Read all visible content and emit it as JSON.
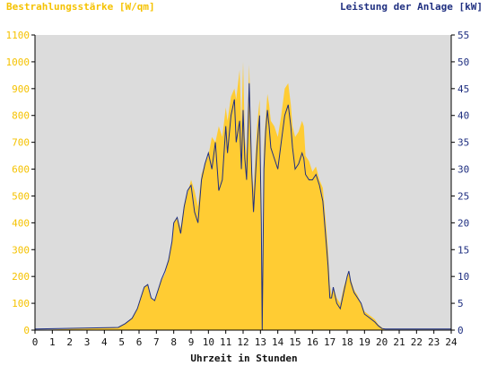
{
  "chart_data": {
    "type": "area",
    "left_title": "Bestrahlungsstärke [W/qm]",
    "right_title": "Leistung der Anlage [kW]",
    "xlabel": "Uhrzeit in Stunden",
    "x_ticks": [
      "0",
      "1",
      "2",
      "3",
      "4",
      "5",
      "6",
      "7",
      "8",
      "9",
      "10",
      "11",
      "12",
      "13",
      "14",
      "15",
      "16",
      "17",
      "18",
      "19",
      "20",
      "21",
      "22",
      "23",
      "24"
    ],
    "xlim": [
      0,
      24
    ],
    "y_left_ticks": [
      "0",
      "100",
      "200",
      "300",
      "400",
      "500",
      "600",
      "700",
      "800",
      "900",
      "1000",
      "1100"
    ],
    "ylim_left": [
      0,
      1100
    ],
    "y_right_ticks": [
      "0",
      "5",
      "10",
      "15",
      "20",
      "25",
      "30",
      "35",
      "40",
      "45",
      "50",
      "55"
    ],
    "ylim_right": [
      0,
      55
    ],
    "grid": false,
    "colors": {
      "plot_background": "#dcdcdc",
      "irradiance_fill": "#ffcc33",
      "power_line": "#1f2f80",
      "left_axis_text": "#f5c200",
      "right_axis_text": "#1f2f80"
    },
    "series": [
      {
        "name": "Bestrahlungsstärke [W/qm]",
        "axis": "left",
        "x": [
          0,
          4.8,
          5.2,
          5.6,
          5.9,
          6.1,
          6.3,
          6.5,
          6.7,
          6.9,
          7.1,
          7.3,
          7.5,
          7.7,
          7.9,
          8.0,
          8.2,
          8.4,
          8.6,
          8.8,
          9.0,
          9.2,
          9.4,
          9.6,
          9.8,
          10.0,
          10.2,
          10.4,
          10.6,
          10.8,
          11.0,
          11.1,
          11.3,
          11.5,
          11.6,
          11.8,
          11.9,
          12.0,
          12.1,
          12.2,
          12.35,
          12.5,
          12.6,
          12.8,
          12.95,
          13.05,
          13.1,
          13.2,
          13.3,
          13.4,
          13.5,
          13.6,
          13.8,
          14.0,
          14.2,
          14.4,
          14.6,
          14.75,
          14.85,
          15.0,
          15.2,
          15.4,
          15.5,
          15.6,
          15.8,
          16.0,
          16.2,
          16.4,
          16.6,
          16.8,
          16.9,
          17.0,
          17.1,
          17.2,
          17.4,
          17.6,
          17.8,
          18.0,
          18.1,
          18.2,
          18.4,
          18.6,
          18.8,
          19.0,
          19.2,
          19.4,
          19.6,
          19.8,
          20.0,
          20.2,
          20.4,
          20.6,
          24
        ],
        "values": [
          0,
          10,
          25,
          45,
          80,
          120,
          160,
          170,
          120,
          110,
          150,
          185,
          210,
          260,
          330,
          400,
          420,
          380,
          470,
          510,
          560,
          520,
          460,
          580,
          620,
          650,
          720,
          700,
          760,
          720,
          830,
          780,
          870,
          900,
          860,
          970,
          760,
          1000,
          720,
          650,
          990,
          600,
          520,
          760,
          860,
          450,
          0,
          680,
          790,
          880,
          840,
          780,
          760,
          720,
          800,
          900,
          920,
          840,
          760,
          720,
          740,
          780,
          760,
          650,
          630,
          590,
          610,
          560,
          530,
          380,
          300,
          170,
          130,
          160,
          120,
          100,
          160,
          200,
          220,
          190,
          150,
          130,
          100,
          70,
          60,
          50,
          40,
          20,
          10,
          0,
          0,
          0,
          0
        ]
      },
      {
        "name": "Leistung der Anlage [kW]",
        "axis": "right",
        "x": [
          0,
          4.8,
          5.2,
          5.6,
          5.9,
          6.1,
          6.3,
          6.5,
          6.7,
          6.9,
          7.1,
          7.3,
          7.5,
          7.7,
          7.9,
          8.0,
          8.2,
          8.4,
          8.6,
          8.8,
          9.0,
          9.2,
          9.4,
          9.6,
          9.8,
          10.0,
          10.2,
          10.4,
          10.6,
          10.8,
          11.0,
          11.1,
          11.3,
          11.5,
          11.6,
          11.8,
          11.9,
          12.0,
          12.1,
          12.2,
          12.35,
          12.5,
          12.6,
          12.8,
          12.95,
          13.05,
          13.1,
          13.2,
          13.3,
          13.4,
          13.5,
          13.6,
          13.8,
          14.0,
          14.2,
          14.4,
          14.6,
          14.75,
          14.85,
          15.0,
          15.2,
          15.4,
          15.5,
          15.6,
          15.8,
          16.0,
          16.2,
          16.4,
          16.6,
          16.8,
          16.9,
          17.0,
          17.1,
          17.2,
          17.4,
          17.6,
          17.8,
          18.0,
          18.1,
          18.2,
          18.4,
          18.6,
          18.8,
          19.0,
          19.2,
          19.4,
          19.6,
          19.8,
          20.0,
          20.2,
          20.4,
          20.6,
          24
        ],
        "values": [
          0.2,
          0.5,
          1.2,
          2.2,
          4,
          6,
          8,
          8.5,
          6,
          5.5,
          7.5,
          9.5,
          11,
          13,
          16.5,
          20,
          21,
          18,
          23,
          26,
          27,
          22,
          20,
          28,
          31,
          33,
          30,
          35,
          26,
          28,
          38,
          33,
          40,
          43,
          35,
          39,
          30,
          41,
          32,
          28,
          46,
          29,
          22,
          34,
          40,
          20,
          0,
          30,
          37,
          41,
          38,
          34,
          32,
          30,
          35,
          40,
          42,
          38,
          34,
          30,
          31,
          33,
          32,
          29,
          28,
          28,
          29,
          27,
          24,
          16,
          12,
          6,
          6,
          8,
          5,
          4,
          7,
          10,
          11,
          9,
          7,
          6,
          5,
          3,
          2.5,
          2,
          1.5,
          0.8,
          0.3,
          0.2,
          0.2,
          0.2,
          0.2
        ]
      }
    ]
  }
}
